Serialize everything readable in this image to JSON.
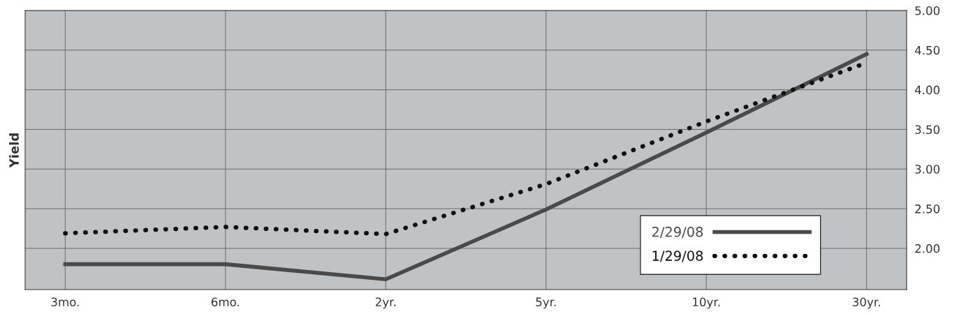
{
  "chart_data": {
    "type": "line",
    "ylabel": "Yield",
    "categories": [
      "3mo.",
      "6mo.",
      "2yr.",
      "5yr.",
      "10yr.",
      "30yr."
    ],
    "series": [
      {
        "name": "2/29/08",
        "color": "#4a4a4a",
        "line_style": "solid",
        "values": [
          1.8,
          1.8,
          1.61,
          2.49,
          3.46,
          4.45
        ]
      },
      {
        "name": "1/29/08",
        "color": "#111111",
        "line_style": "dotted",
        "values": [
          2.19,
          2.27,
          2.18,
          2.81,
          3.6,
          4.34
        ]
      }
    ],
    "ylim": [
      1.48,
      5.0
    ],
    "yticks": [
      {
        "value": 2.0,
        "label": "2.00"
      },
      {
        "value": 2.5,
        "label": "2.50"
      },
      {
        "value": 3.0,
        "label": "3.00"
      },
      {
        "value": 3.5,
        "label": "3.50"
      },
      {
        "value": 4.0,
        "label": "4.00"
      },
      {
        "value": 4.5,
        "label": "4.50"
      },
      {
        "value": 5.0,
        "label": "5.00"
      }
    ],
    "grid": true,
    "legend": "bottom right",
    "marker": "none"
  }
}
